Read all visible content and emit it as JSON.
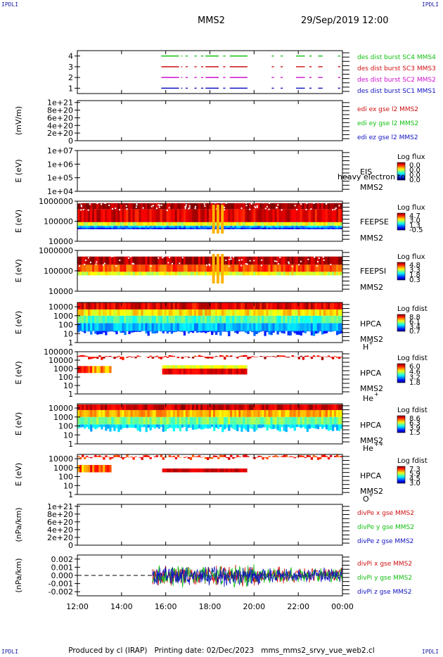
{
  "header": {
    "corner_tl": "IPDLI",
    "corner_tr": "IPDLI",
    "corner_bl": "IPDLI",
    "corner_br": "IPDLI",
    "spacecraft": "MMS2",
    "datetime": "29/Sep/2019 12:00"
  },
  "footer": {
    "produced_by": "Produced by cl (IRAP)",
    "printing_date": "Printing date: 02/Dec/2023",
    "script_name": "mms_mms2_srvy_vue_web2.cl"
  },
  "colors": {
    "blue": "#1010c0",
    "red": "#d01010",
    "magenta": "#d010d0",
    "green": "#10c010",
    "dashed": "#000000"
  },
  "chart_data": [
    {
      "id": "burst",
      "type": "line",
      "ylim": [
        0.5,
        4.5
      ],
      "yticks": [
        "1",
        "2",
        "3",
        "4"
      ],
      "series": [
        {
          "name": "des dist burst SC1 MMS1",
          "color": "blue",
          "level": 1,
          "segments": [
            [
              15.8,
              16.6
            ],
            [
              16.7,
              16.75
            ],
            [
              16.9,
              17.0
            ],
            [
              17.3,
              17.4
            ],
            [
              17.6,
              17.7
            ],
            [
              17.8,
              18.4
            ],
            [
              18.6,
              18.7
            ],
            [
              18.9,
              19.7
            ],
            [
              20.8,
              20.9
            ],
            [
              21.2,
              21.3
            ],
            [
              21.9,
              22.3
            ],
            [
              22.5,
              22.6
            ],
            [
              22.9,
              23.1
            ],
            [
              23.8,
              23.9
            ]
          ]
        },
        {
          "name": "des dist burst SC2 MMS2",
          "color": "magenta",
          "level": 2,
          "segments": [
            [
              15.8,
              16.6
            ],
            [
              16.7,
              16.75
            ],
            [
              16.9,
              17.0
            ],
            [
              17.3,
              17.4
            ],
            [
              17.6,
              17.7
            ],
            [
              17.8,
              18.4
            ],
            [
              18.6,
              18.7
            ],
            [
              18.9,
              19.7
            ],
            [
              20.8,
              20.9
            ],
            [
              21.2,
              21.3
            ],
            [
              21.9,
              22.3
            ],
            [
              22.5,
              22.6
            ],
            [
              22.9,
              23.1
            ],
            [
              23.8,
              23.9
            ]
          ]
        },
        {
          "name": "des dist burst SC3 MMS3",
          "color": "red",
          "level": 3,
          "segments": [
            [
              15.8,
              16.6
            ],
            [
              16.7,
              16.75
            ],
            [
              16.9,
              17.0
            ],
            [
              17.3,
              17.4
            ],
            [
              17.6,
              17.7
            ],
            [
              17.8,
              18.4
            ],
            [
              18.6,
              18.7
            ],
            [
              18.9,
              19.7
            ],
            [
              20.8,
              20.9
            ],
            [
              21.2,
              21.3
            ],
            [
              21.9,
              22.3
            ],
            [
              22.5,
              22.6
            ],
            [
              22.9,
              23.1
            ],
            [
              23.8,
              23.9
            ]
          ]
        },
        {
          "name": "des dist burst SC4 MMS4",
          "color": "green",
          "level": 4,
          "segments": [
            [
              15.8,
              16.6
            ],
            [
              16.7,
              16.75
            ],
            [
              16.9,
              17.0
            ],
            [
              17.3,
              17.4
            ],
            [
              17.6,
              17.7
            ],
            [
              17.8,
              18.4
            ],
            [
              18.6,
              18.7
            ],
            [
              18.9,
              19.7
            ],
            [
              20.8,
              20.9
            ],
            [
              21.2,
              21.3
            ],
            [
              21.9,
              22.3
            ],
            [
              22.5,
              22.6
            ],
            [
              22.9,
              23.1
            ],
            [
              23.8,
              23.9
            ]
          ]
        }
      ]
    },
    {
      "id": "edi",
      "type": "line",
      "ylabel": "(mV/m)",
      "ylim": [
        0,
        1.05e+21
      ],
      "yticks": [
        "0",
        "2e+20",
        "4e+20",
        "6e+20",
        "8e+20",
        "1e+21"
      ],
      "zero_dashed": true,
      "series": [
        {
          "name": "edi ex gse l2 MMS2",
          "color": "red"
        },
        {
          "name": "edi ey gse l2 MMS2",
          "color": "green"
        },
        {
          "name": "edi ez gse l2 MMS2",
          "color": "blue"
        }
      ]
    },
    {
      "id": "eis",
      "type": "heatmap",
      "ylabel": "E (eV)",
      "yscale": "log",
      "ylim": [
        10000,
        10000000
      ],
      "yticks": [
        "1e+04",
        "1e+05",
        "1e+06",
        "1e+07"
      ],
      "instrument": "EIS",
      "instrument2": "MMS2",
      "species": "heavy electron to",
      "colorbar": {
        "title": "Log flux",
        "ticks": [
          "0.0",
          "0.0",
          "0.0",
          "0.0"
        ]
      },
      "bands": []
    },
    {
      "id": "feepse",
      "type": "heatmap",
      "ylabel": "E (eV)",
      "yscale": "log",
      "ylim": [
        10000,
        1000000
      ],
      "yticks": [
        "10000",
        "100000",
        "1000000"
      ],
      "instrument": "FEEPSE",
      "instrument2": "MMS2",
      "colorbar": {
        "title": "Log flux",
        "ticks": [
          "4.7",
          "3.0",
          "1.3",
          "-0.5"
        ]
      },
      "bands": [
        [
          40000,
          48000,
          0.15
        ],
        [
          48000,
          60000,
          0.3
        ],
        [
          60000,
          90000,
          0.6
        ],
        [
          90000,
          400000,
          0.9
        ],
        [
          400000,
          800000,
          0.97
        ]
      ]
    },
    {
      "id": "feepsi",
      "type": "heatmap",
      "ylabel": "E (eV)",
      "yscale": "log",
      "ylim": [
        10000,
        1000000
      ],
      "yticks": [
        "10000",
        "100000",
        "1000000"
      ],
      "instrument": "FEEPSI",
      "instrument2": "MMS2",
      "colorbar": {
        "title": "Log flux",
        "ticks": [
          "4.8",
          "3.3",
          "1.8",
          "0.3"
        ]
      },
      "bands": [
        [
          60000,
          90000,
          0.6
        ],
        [
          90000,
          200000,
          0.8
        ],
        [
          200000,
          500000,
          0.95
        ]
      ]
    },
    {
      "id": "hpca_h",
      "type": "heatmap",
      "ylabel": "E (eV)",
      "yscale": "log",
      "ylim": [
        1,
        30000
      ],
      "yticks": [
        "1",
        "10",
        "100",
        "1000",
        "10000"
      ],
      "instrument": "HPCA",
      "instrument2": "MMS2",
      "species": "H",
      "species_sup": "+",
      "colorbar": {
        "title": "Log fdist",
        "ticks": [
          "8.8",
          "6.1",
          "3.4",
          "0.7"
        ]
      },
      "bands": [
        [
          5,
          20,
          0.2
        ],
        [
          20,
          150,
          0.3
        ],
        [
          150,
          1000,
          0.45
        ],
        [
          1000,
          5000,
          0.65
        ],
        [
          5000,
          30000,
          0.9
        ]
      ]
    },
    {
      "id": "hpca_he1",
      "type": "heatmap",
      "ylabel": "E (eV)",
      "yscale": "log",
      "ylim": [
        1,
        100000
      ],
      "yticks": [
        "1",
        "10",
        "100",
        "1000",
        "10000",
        "100000"
      ],
      "instrument": "HPCA",
      "instrument2": "MMS2",
      "species": "He",
      "species_sup": "+",
      "colorbar": {
        "title": "Log fdist",
        "ticks": [
          "6.0",
          "4.6",
          "3.2",
          "1.8"
        ]
      },
      "bands": [
        [
          10000,
          25000,
          0.9
        ]
      ]
    },
    {
      "id": "hpca_he2",
      "type": "heatmap",
      "ylabel": "E (eV)",
      "yscale": "log",
      "ylim": [
        1,
        30000
      ],
      "yticks": [
        "1",
        "10",
        "100",
        "1000",
        "10000"
      ],
      "instrument": "HPCA",
      "instrument2": "MMS2",
      "species": "He",
      "species_sup": "++",
      "colorbar": {
        "title": "Log fdist",
        "ticks": [
          "8.6",
          "6.3",
          "3.9",
          "1.5"
        ]
      },
      "bands": [
        [
          20,
          150,
          0.35
        ],
        [
          150,
          1000,
          0.5
        ],
        [
          1000,
          6000,
          0.7
        ],
        [
          6000,
          25000,
          0.92
        ]
      ]
    },
    {
      "id": "hpca_o",
      "type": "heatmap",
      "ylabel": "E (eV)",
      "yscale": "log",
      "ylim": [
        1,
        30000
      ],
      "yticks": [
        "1",
        "10",
        "100",
        "1000",
        "10000"
      ],
      "instrument": "HPCA",
      "instrument2": "MMS2",
      "species": "O",
      "species_sup": "+",
      "colorbar": {
        "title": "Log fdist",
        "ticks": [
          "7.3",
          "5.9",
          "4.5",
          "3.0"
        ]
      },
      "bands": [
        [
          7000,
          15000,
          0.85
        ]
      ]
    },
    {
      "id": "divpe",
      "type": "line",
      "ylabel": "(nPa/km)",
      "ylim": [
        0,
        1.05e+21
      ],
      "yticks": [
        "0",
        "2e+20",
        "4e+20",
        "6e+20",
        "8e+20",
        "1e+21"
      ],
      "zero_dashed": true,
      "series": [
        {
          "name": "divPe x gse MMS2",
          "color": "red"
        },
        {
          "name": "divPe y gse MMS2",
          "color": "green"
        },
        {
          "name": "divPe z gse MMS2",
          "color": "blue"
        }
      ]
    },
    {
      "id": "divpi",
      "type": "line",
      "ylabel": "(nPa/km)",
      "ylim": [
        -0.0025,
        0.0025
      ],
      "yticks": [
        "-0.002",
        "-0.001",
        "0.000",
        "0.001",
        "0.002"
      ],
      "zero_dashed": true,
      "data_start": 15.4,
      "series": [
        {
          "name": "divPi x gse MMS2",
          "color": "red"
        },
        {
          "name": "divPi y gse MMS2",
          "color": "green"
        },
        {
          "name": "divPi z gse MMS2",
          "color": "blue"
        }
      ]
    }
  ],
  "x_axis": {
    "range": [
      12,
      24
    ],
    "ticks": [
      {
        "value": 12,
        "label": "12:00"
      },
      {
        "value": 14,
        "label": "14:00"
      },
      {
        "value": 16,
        "label": "16:00"
      },
      {
        "value": 18,
        "label": "18:00"
      },
      {
        "value": 20,
        "label": "20:00"
      },
      {
        "value": 22,
        "label": "22:00"
      },
      {
        "value": 24,
        "label": "00:00"
      }
    ]
  }
}
